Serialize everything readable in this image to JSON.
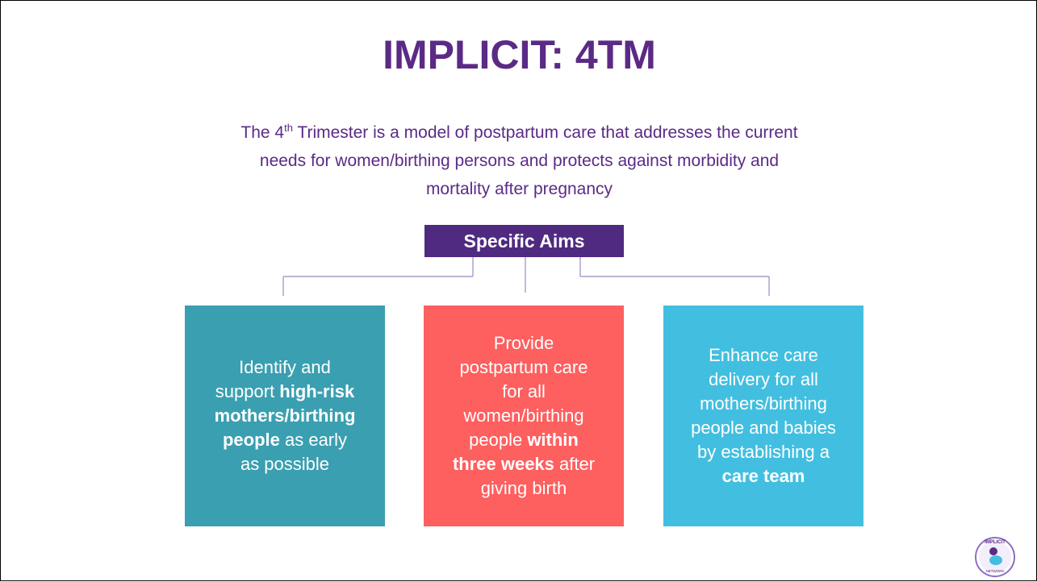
{
  "title": "IMPLICIT: 4TM",
  "subtitle": {
    "lines": [
      [
        {
          "text": "The 4"
        },
        {
          "text": "th",
          "style": "sup"
        },
        {
          "text": " Trimester is a model of postpartum care that addresses the current"
        }
      ],
      [
        {
          "text": "needs for women/birthing persons and protects against morbidity and"
        }
      ],
      [
        {
          "text": "mortality after pregnancy"
        }
      ]
    ]
  },
  "aims_heading": "Specific Aims",
  "aims": [
    {
      "color": "#3a9fb1",
      "lines": [
        [
          {
            "text": "Identify and"
          }
        ],
        [
          {
            "text": "support "
          },
          {
            "text": "high-risk",
            "style": "bold"
          }
        ],
        [
          {
            "text": "mothers/birthing",
            "style": "bold"
          }
        ],
        [
          {
            "text": "people",
            "style": "bold"
          },
          {
            "text": " as early"
          }
        ],
        [
          {
            "text": "as possible"
          }
        ]
      ]
    },
    {
      "color": "#fe5f5f",
      "lines": [
        [
          {
            "text": "Provide"
          }
        ],
        [
          {
            "text": "postpartum care"
          }
        ],
        [
          {
            "text": "for all"
          }
        ],
        [
          {
            "text": "women/birthing"
          }
        ],
        [
          {
            "text": "people "
          },
          {
            "text": "within",
            "style": "bold"
          }
        ],
        [
          {
            "text": "three weeks",
            "style": "bold"
          },
          {
            "text": " after"
          }
        ],
        [
          {
            "text": "giving birth"
          }
        ]
      ]
    },
    {
      "color": "#42bfe0",
      "lines": [
        [
          {
            "text": "Enhance care"
          }
        ],
        [
          {
            "text": "delivery for all"
          }
        ],
        [
          {
            "text": "mothers/birthing"
          }
        ],
        [
          {
            "text": "people and babies"
          }
        ],
        [
          {
            "text": "by establishing a"
          }
        ],
        [
          {
            "text": "care team",
            "style": "bold"
          }
        ]
      ]
    }
  ],
  "logo": {
    "top": "IMPLICIT",
    "bottom": "NETWORK"
  }
}
